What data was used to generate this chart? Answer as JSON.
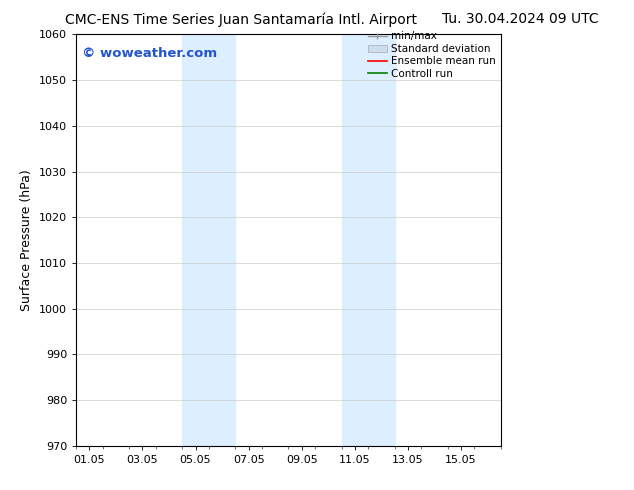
{
  "title_left": "CMC-ENS Time Series Juan Santamaría Intl. Airport",
  "title_right": "Tu. 30.04.2024 09 UTC",
  "ylabel": "Surface Pressure (hPa)",
  "ylim": [
    970,
    1060
  ],
  "yticks": [
    970,
    980,
    990,
    1000,
    1010,
    1020,
    1030,
    1040,
    1050,
    1060
  ],
  "xtick_labels": [
    "01.05",
    "03.05",
    "05.05",
    "07.05",
    "09.05",
    "11.05",
    "13.05",
    "15.05"
  ],
  "xtick_positions": [
    0,
    2,
    4,
    6,
    8,
    10,
    12,
    14
  ],
  "xlim": [
    -0.5,
    15.5
  ],
  "shaded_bands": [
    {
      "x_start": 3.5,
      "x_end": 5.5,
      "color": "#ddeeff"
    },
    {
      "x_start": 9.5,
      "x_end": 11.5,
      "color": "#ddeeff"
    }
  ],
  "legend_entries": [
    {
      "label": "min/max",
      "type": "errorbar",
      "color": "#999999"
    },
    {
      "label": "Standard deviation",
      "type": "patch",
      "color": "#ccddf0"
    },
    {
      "label": "Ensemble mean run",
      "type": "line",
      "color": "#ff0000"
    },
    {
      "label": "Controll run",
      "type": "line",
      "color": "#008000"
    }
  ],
  "watermark": "© woweather.com",
  "watermark_color": "#2255cc",
  "watermark_fontsize": 9.5,
  "bg_color": "#ffffff",
  "title_fontsize": 10,
  "axis_label_fontsize": 9,
  "tick_fontsize": 8,
  "legend_fontsize": 7.5,
  "grid_color": "#cccccc",
  "grid_lw": 0.5
}
